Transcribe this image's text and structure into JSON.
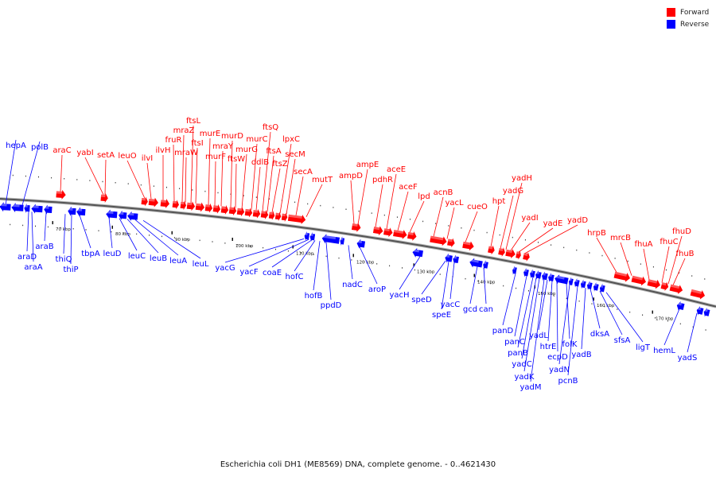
{
  "legend": {
    "forward": {
      "label": "Forward",
      "color": "#ff0000"
    },
    "reverse": {
      "label": "Reverse",
      "color": "#0000ff"
    }
  },
  "caption": "Escherichia coli DH1 (ME8569) DNA, complete genome. - 0..4621430",
  "scale": {
    "tick_labels": [
      "70 kbp",
      "80 kbp",
      "90 kbp",
      "100 kbp",
      "110 kbp",
      "120 kbp",
      "130 kbp",
      "140 kbp",
      "150 kbp",
      "160 kbp",
      "170 kbp"
    ]
  },
  "forward_genes": [
    "araC",
    "yabI",
    "setA",
    "leuO",
    "ilvI",
    "ilvH",
    "fruR",
    "mraZ",
    "mraW",
    "ftsL",
    "ftsI",
    "murE",
    "murF",
    "mraY",
    "murD",
    "ftsW",
    "murG",
    "murC",
    "ddlB",
    "ftsQ",
    "ftsA",
    "ftsZ",
    "lpxC",
    "secM",
    "secA",
    "mutT",
    "ampD",
    "ampE",
    "pdhR",
    "aceE",
    "aceF",
    "lpd",
    "acnB",
    "yacL",
    "cueO",
    "hpt",
    "yadG",
    "yadH",
    "yadI",
    "yadE",
    "yadD",
    "hrpB",
    "mrcB",
    "fhuA",
    "fhuC",
    "fhuD",
    "fhuB"
  ],
  "reverse_genes": [
    "hepA",
    "polB",
    "araD",
    "araA",
    "araB",
    "thiQ",
    "thiP",
    "tbpA",
    "leuD",
    "leuC",
    "leuB",
    "leuA",
    "leuL",
    "yacG",
    "yacF",
    "coaE",
    "hofC",
    "hofB",
    "ppdD",
    "nadC",
    "aroP",
    "yacH",
    "speD",
    "speE",
    "yacC",
    "gcd",
    "can",
    "panD",
    "panC",
    "panB",
    "yadC",
    "yadK",
    "yadM",
    "yadL",
    "htrE",
    "ecpD",
    "folK",
    "yadN",
    "pcnB",
    "yadB",
    "dksA",
    "sfsA",
    "ligT",
    "hemL",
    "yadS"
  ]
}
